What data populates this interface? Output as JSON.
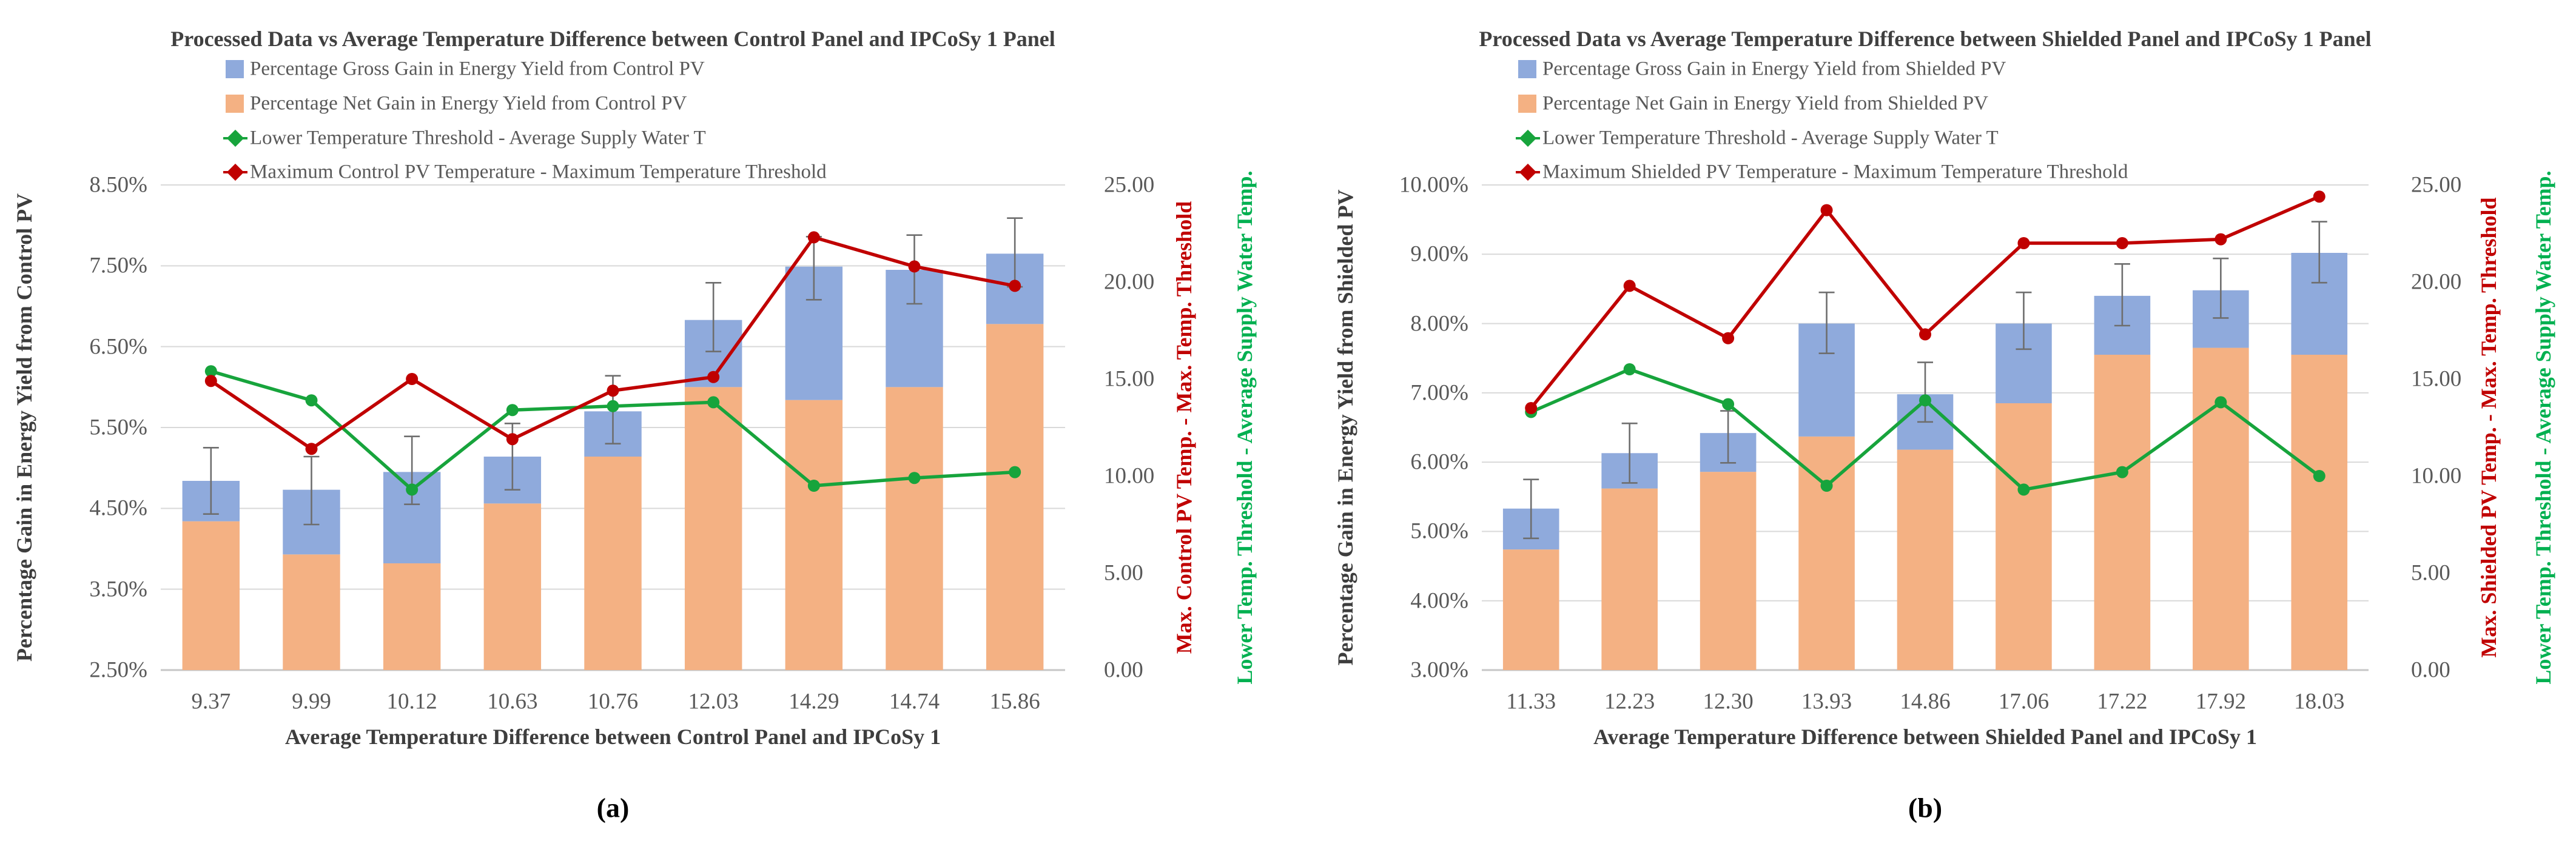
{
  "colors": {
    "background": "#FFFFFF",
    "gross_blue": "#8FAADC",
    "net_orange": "#F4B183",
    "line_green": "#17A43C",
    "line_red": "#C00000",
    "text_green": "#00B050",
    "text_red": "#C00000",
    "tick_text": "#595959",
    "title_text": "#404040",
    "axis_title_text": "#3D3D3D",
    "gridline": "#D9D9D9",
    "axis_line": "#C6C6C6",
    "error_bar": "#6E6E6E",
    "caption_text": "#000000"
  },
  "chart_data": [
    {
      "type": "bar+line",
      "title": "Processed Data vs Average Temperature Difference between Control Panel and IPCoSy 1 Panel",
      "categories": [
        "9.37",
        "9.99",
        "10.12",
        "10.63",
        "10.76",
        "12.03",
        "14.29",
        "14.74",
        "15.86"
      ],
      "xlabel": "Average Temperature Difference between Control Panel and IPCoSy 1",
      "ylabel_left": "Percentage Gain in Energy Yield from Control PV",
      "ylabel_right_red": "Max. Control PV Temp. - Max. Temp. Threshold",
      "ylabel_right_green": "Lower Temp. Threshold - Average Supply Water Temp.",
      "left_ylim_percent": [
        2.5,
        8.5
      ],
      "right_ylim": [
        0,
        25
      ],
      "grid": true,
      "legend_position": "top-left",
      "series": [
        {
          "name": "Percentage Gross Gain in Energy Yield from Control PV",
          "type": "bar",
          "axis": "left",
          "role": "stack-total",
          "values": [
            4.84,
            4.73,
            4.95,
            5.14,
            5.7,
            6.83,
            7.49,
            7.45,
            7.65
          ]
        },
        {
          "name": "Percentage Net Gain in Energy Yield from Control PV",
          "type": "bar",
          "axis": "left",
          "role": "stack-base",
          "values": [
            4.34,
            3.93,
            3.82,
            4.56,
            5.14,
            6.0,
            5.84,
            6.0,
            6.78
          ]
        },
        {
          "name": "Lower Temperature Threshold - Average Supply Water T",
          "type": "line",
          "axis": "right",
          "values": [
            15.4,
            13.9,
            9.3,
            13.4,
            13.6,
            13.8,
            9.5,
            9.9,
            10.2
          ]
        },
        {
          "name": "Maximum Control PV Temperature - Maximum Temperature Threshold",
          "type": "line",
          "axis": "right",
          "values": [
            14.9,
            11.4,
            15.0,
            11.9,
            14.4,
            15.1,
            22.3,
            20.8,
            19.8
          ]
        }
      ],
      "error_bars": {
        "attached_to": "Percentage Gross Gain in Energy Yield from Control PV",
        "upper": [
          5.25,
          5.14,
          5.39,
          5.55,
          6.14,
          7.29,
          7.86,
          7.88,
          8.09
        ],
        "lower": [
          4.43,
          4.3,
          4.55,
          4.73,
          5.3,
          6.44,
          7.08,
          7.03,
          7.24
        ]
      }
    },
    {
      "type": "bar+line",
      "title": "Processed Data vs Average Temperature Difference between Shielded Panel and IPCoSy 1 Panel",
      "categories": [
        "11.33",
        "12.23",
        "12.30",
        "13.93",
        "14.86",
        "17.06",
        "17.22",
        "17.92",
        "18.03"
      ],
      "xlabel": "Average Temperature Difference between Shielded Panel and IPCoSy 1",
      "ylabel_left": "Percentage Gain in Energy Yield from Shielded PV",
      "ylabel_right_red": "Max. Shielded PV Temp. - Max. Temp. Threshold",
      "ylabel_right_green": "Lower Temp. Threshold - Average Supply Water Temp.",
      "left_ylim_percent": [
        3.0,
        10.0
      ],
      "right_ylim": [
        0,
        25
      ],
      "grid": true,
      "legend_position": "top-left",
      "series": [
        {
          "name": "Percentage Gross Gain in Energy Yield from Shielded PV",
          "type": "bar",
          "axis": "left",
          "role": "stack-total",
          "values": [
            5.33,
            6.13,
            6.42,
            8.0,
            6.98,
            8.0,
            8.4,
            8.48,
            9.02
          ]
        },
        {
          "name": "Percentage Net Gain in Energy Yield from Shielded PV",
          "type": "bar",
          "axis": "left",
          "role": "stack-base",
          "values": [
            4.74,
            5.62,
            5.86,
            6.37,
            6.18,
            6.85,
            7.55,
            7.65,
            7.55
          ]
        },
        {
          "name": "Lower Temperature Threshold - Average Supply Water T",
          "type": "line",
          "axis": "right",
          "values": [
            13.3,
            15.5,
            13.7,
            9.5,
            13.9,
            9.3,
            10.2,
            13.8,
            10.0
          ]
        },
        {
          "name": "Maximum Shielded PV Temperature - Maximum Temperature Threshold",
          "type": "line",
          "axis": "right",
          "values": [
            13.5,
            19.8,
            17.1,
            23.7,
            17.3,
            22.0,
            22.0,
            22.2,
            24.4
          ]
        }
      ],
      "error_bars": {
        "attached_to": "Percentage Gross Gain in Energy Yield from Shielded PV",
        "upper": [
          5.75,
          6.56,
          6.74,
          8.45,
          7.44,
          8.45,
          8.86,
          8.94,
          9.47
        ],
        "lower": [
          4.9,
          5.7,
          5.99,
          7.57,
          6.58,
          7.63,
          7.97,
          8.08,
          8.59
        ]
      }
    }
  ],
  "figures": [
    {
      "caption": "(a)",
      "left_ticks": [
        "8.50%",
        "7.50%",
        "6.50%",
        "5.50%",
        "4.50%",
        "3.50%",
        "2.50%"
      ],
      "right_ticks": [
        "25.00",
        "20.00",
        "15.00",
        "10.00",
        "5.00",
        "0.00"
      ]
    },
    {
      "caption": "(b)",
      "left_ticks": [
        "10.00%",
        "9.00%",
        "8.00%",
        "7.00%",
        "6.00%",
        "5.00%",
        "4.00%",
        "3.00%"
      ],
      "right_ticks": [
        "25.00",
        "20.00",
        "15.00",
        "10.00",
        "5.00",
        "0.00"
      ]
    }
  ]
}
